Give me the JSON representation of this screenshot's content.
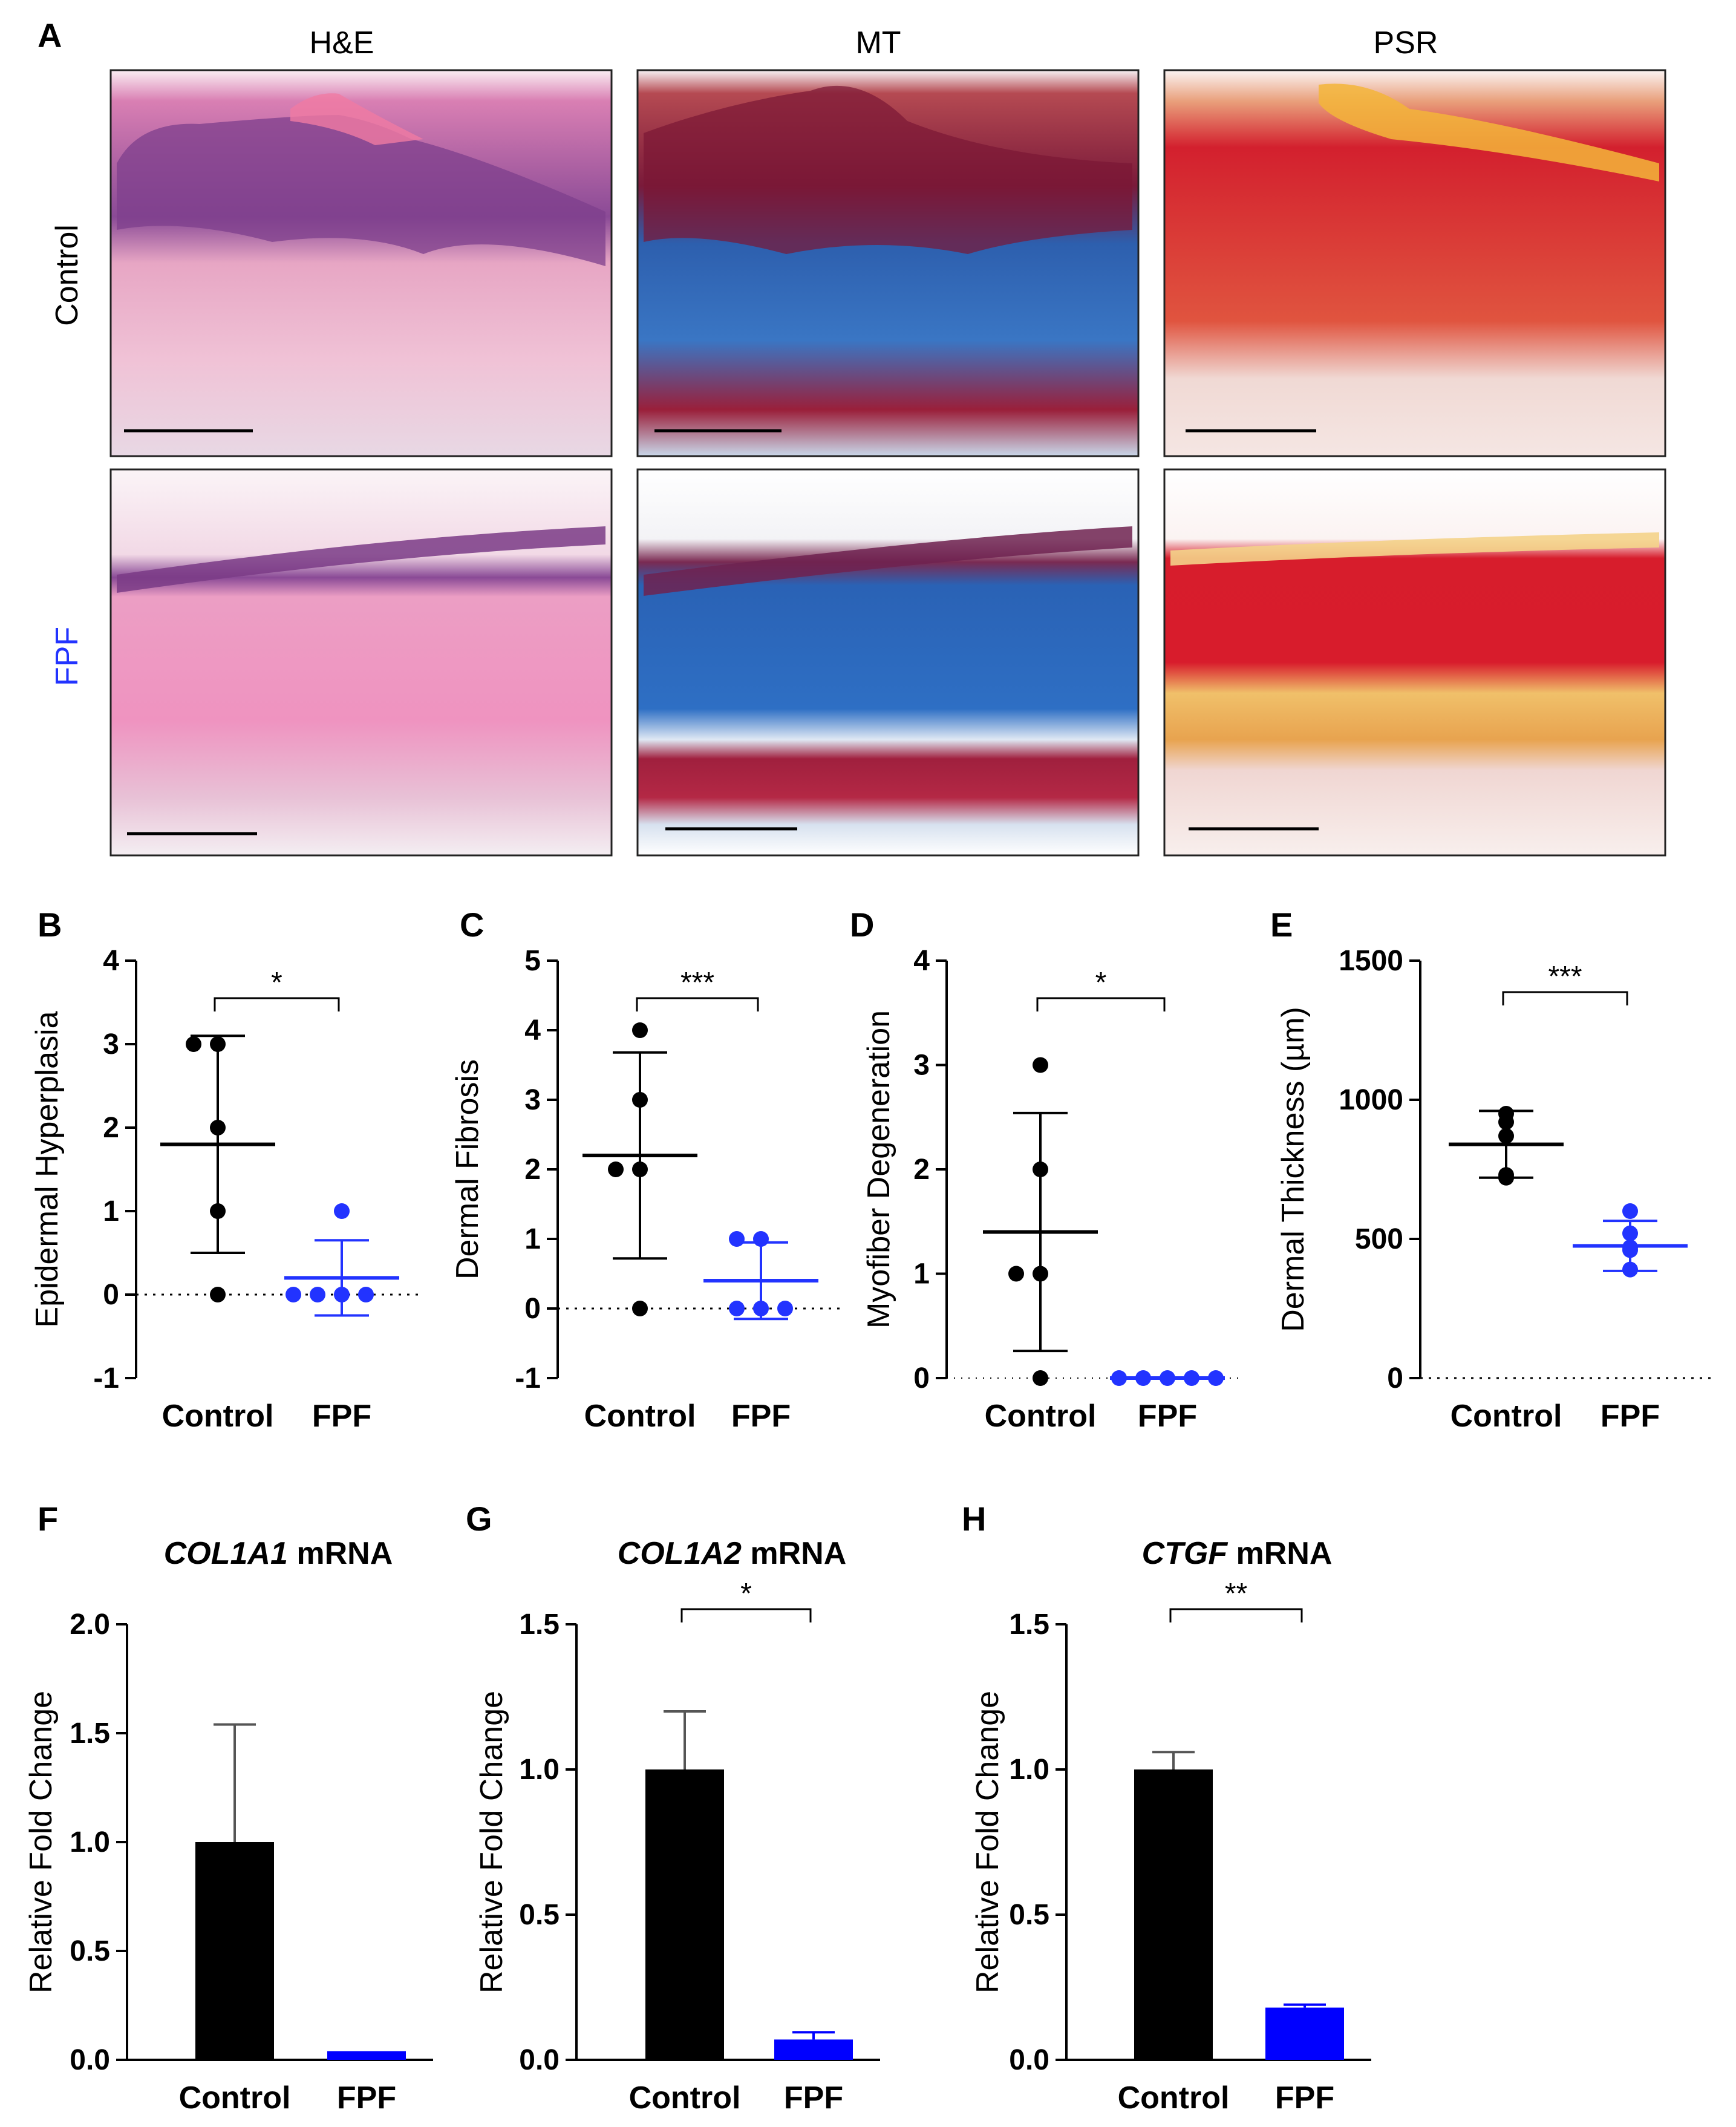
{
  "panel_A": {
    "label": "A",
    "columns": [
      "H&E",
      "MT",
      "PSR"
    ],
    "rows": [
      "Control",
      "FPF"
    ],
    "row_colors": [
      "#000000",
      "#2233ff"
    ]
  },
  "colors": {
    "control": "#000000",
    "fpf": "#2233ff",
    "fpf_bar": "#0000ff"
  },
  "chart_data": [
    {
      "panel": "B",
      "type": "scatter",
      "ylabel": "Epidermal Hyperplasia",
      "categories": [
        "Control",
        "FPF"
      ],
      "ylim": [
        -1,
        4
      ],
      "yticks": [
        -1,
        0,
        1,
        2,
        3,
        4
      ],
      "zero_line": true,
      "series": [
        {
          "points": [
            3,
            3,
            2,
            1,
            0
          ],
          "mean": 1.8,
          "sd": 1.3
        },
        {
          "points": [
            1,
            0,
            0,
            0,
            0
          ],
          "mean": 0.2,
          "sd": 0.45
        }
      ],
      "significance": "*"
    },
    {
      "panel": "C",
      "type": "scatter",
      "ylabel": "Dermal Fibrosis",
      "categories": [
        "Control",
        "FPF"
      ],
      "ylim": [
        -1,
        5
      ],
      "yticks": [
        -1,
        0,
        1,
        2,
        3,
        4,
        5
      ],
      "zero_line": true,
      "series": [
        {
          "points": [
            4,
            3,
            2,
            2,
            0
          ],
          "mean": 2.2,
          "sd": 1.48
        },
        {
          "points": [
            1,
            1,
            0,
            0,
            0
          ],
          "mean": 0.4,
          "sd": 0.55
        }
      ],
      "significance": "***"
    },
    {
      "panel": "D",
      "type": "scatter",
      "ylabel": "Myofiber Degeneration",
      "categories": [
        "Control",
        "FPF"
      ],
      "ylim": [
        0,
        4
      ],
      "yticks": [
        0,
        1,
        2,
        3,
        4
      ],
      "zero_line": false,
      "series": [
        {
          "points": [
            3,
            2,
            1,
            1,
            0
          ],
          "mean": 1.4,
          "sd": 1.14
        },
        {
          "points": [
            0,
            0,
            0,
            0,
            0
          ],
          "mean": 0,
          "sd": 0
        }
      ],
      "significance": "*"
    },
    {
      "panel": "E",
      "type": "scatter",
      "ylabel": "Dermal Thickness (µm)",
      "categories": [
        "Control",
        "FPF"
      ],
      "ylim": [
        0,
        1500
      ],
      "yticks": [
        0,
        500,
        1000,
        1500
      ],
      "zero_line": true,
      "series": [
        {
          "points": [
            950,
            920,
            870,
            730,
            720
          ],
          "mean": 840,
          "sd": 120
        },
        {
          "points": [
            600,
            520,
            470,
            460,
            390
          ],
          "mean": 475,
          "sd": 90
        }
      ],
      "significance": "***"
    },
    {
      "panel": "F",
      "type": "bar",
      "title_italic": "COL1A1",
      "title_rest": " mRNA",
      "ylabel": "Relative Fold Change",
      "categories": [
        "Control",
        "FPF"
      ],
      "values": [
        1.0,
        0.04
      ],
      "errors": [
        0.54,
        0.0
      ],
      "ylim": [
        0,
        2.0
      ],
      "yticks": [
        "0.0",
        "0.5",
        "1.0",
        "1.5",
        "2.0"
      ],
      "significance": ""
    },
    {
      "panel": "G",
      "type": "bar",
      "title_italic": "COL1A2",
      "title_rest": " mRNA",
      "ylabel": "Relative Fold Change",
      "categories": [
        "Control",
        "FPF"
      ],
      "values": [
        1.0,
        0.07
      ],
      "errors": [
        0.2,
        0.025
      ],
      "ylim": [
        0,
        1.5
      ],
      "yticks": [
        "0.0",
        "0.5",
        "1.0",
        "1.5"
      ],
      "significance": "*"
    },
    {
      "panel": "H",
      "type": "bar",
      "title_italic": "CTGF",
      "title_rest": " mRNA",
      "ylabel": "Relative Fold Change",
      "categories": [
        "Control",
        "FPF"
      ],
      "values": [
        1.0,
        0.18
      ],
      "errors": [
        0.06,
        0.01
      ],
      "ylim": [
        0,
        1.5
      ],
      "yticks": [
        "0.0",
        "0.5",
        "1.0",
        "1.5"
      ],
      "significance": "**"
    }
  ]
}
